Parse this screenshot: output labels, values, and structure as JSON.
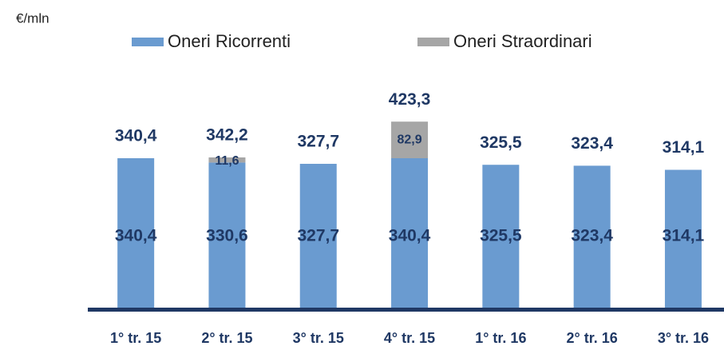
{
  "chart_data": {
    "type": "stacked-bar",
    "unit_label": "€/mln",
    "categories": [
      "1° tr. 15",
      "2° tr. 15",
      "3° tr. 15",
      "4° tr. 15",
      "1° tr. 16",
      "2° tr. 16",
      "3° tr. 16"
    ],
    "series": [
      {
        "name": "Oneri Ricorrenti",
        "color": "#6a9bd0",
        "values": [
          340.4,
          330.6,
          327.7,
          340.4,
          325.5,
          323.4,
          314.1
        ],
        "value_labels": [
          "340,4",
          "330,6",
          "327,7",
          "340,4",
          "325,5",
          "323,4",
          "314,1"
        ]
      },
      {
        "name": "Oneri Straordinari",
        "color": "#a6a6a6",
        "values": [
          null,
          11.6,
          null,
          82.9,
          null,
          null,
          null
        ],
        "value_labels": [
          null,
          "11,6",
          null,
          "82,9",
          null,
          null,
          null
        ]
      }
    ],
    "totals": [
      340.4,
      342.2,
      327.7,
      423.3,
      325.5,
      323.4,
      314.1
    ],
    "total_labels": [
      "340,4",
      "342,2",
      "327,7",
      "423,3",
      "325,5",
      "323,4",
      "314,1"
    ],
    "legend": "top"
  }
}
